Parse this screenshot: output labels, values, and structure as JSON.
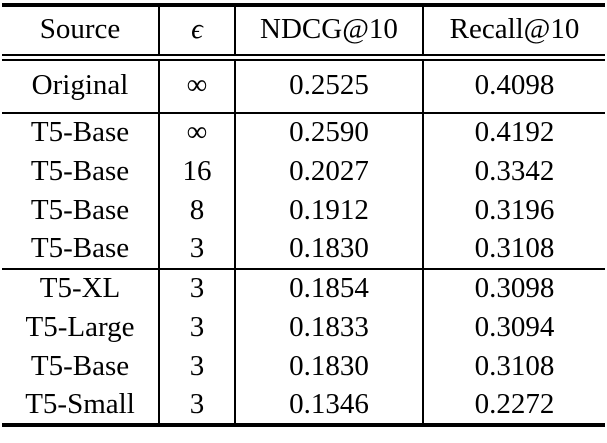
{
  "table": {
    "columns": {
      "source": "Source",
      "epsilon": "ϵ",
      "ndcg": "NDCG@10",
      "recall": "Recall@10"
    },
    "groups": [
      {
        "rows": [
          {
            "source": "Original",
            "epsilon": "∞",
            "ndcg": "0.2525",
            "recall": "0.4098"
          }
        ]
      },
      {
        "rows": [
          {
            "source": "T5-Base",
            "epsilon": "∞",
            "ndcg": "0.2590",
            "recall": "0.4192"
          },
          {
            "source": "T5-Base",
            "epsilon": "16",
            "ndcg": "0.2027",
            "recall": "0.3342"
          },
          {
            "source": "T5-Base",
            "epsilon": "8",
            "ndcg": "0.1912",
            "recall": "0.3196"
          },
          {
            "source": "T5-Base",
            "epsilon": "3",
            "ndcg": "0.1830",
            "recall": "0.3108"
          }
        ]
      },
      {
        "rows": [
          {
            "source": "T5-XL",
            "epsilon": "3",
            "ndcg": "0.1854",
            "recall": "0.3098"
          },
          {
            "source": "T5-Large",
            "epsilon": "3",
            "ndcg": "0.1833",
            "recall": "0.3094"
          },
          {
            "source": "T5-Base",
            "epsilon": "3",
            "ndcg": "0.1830",
            "recall": "0.3108"
          },
          {
            "source": "T5-Small",
            "epsilon": "3",
            "ndcg": "0.1346",
            "recall": "0.2272"
          }
        ]
      }
    ],
    "colors": {
      "text": "#000000",
      "rule": "#000000",
      "background": "#ffffff"
    }
  }
}
